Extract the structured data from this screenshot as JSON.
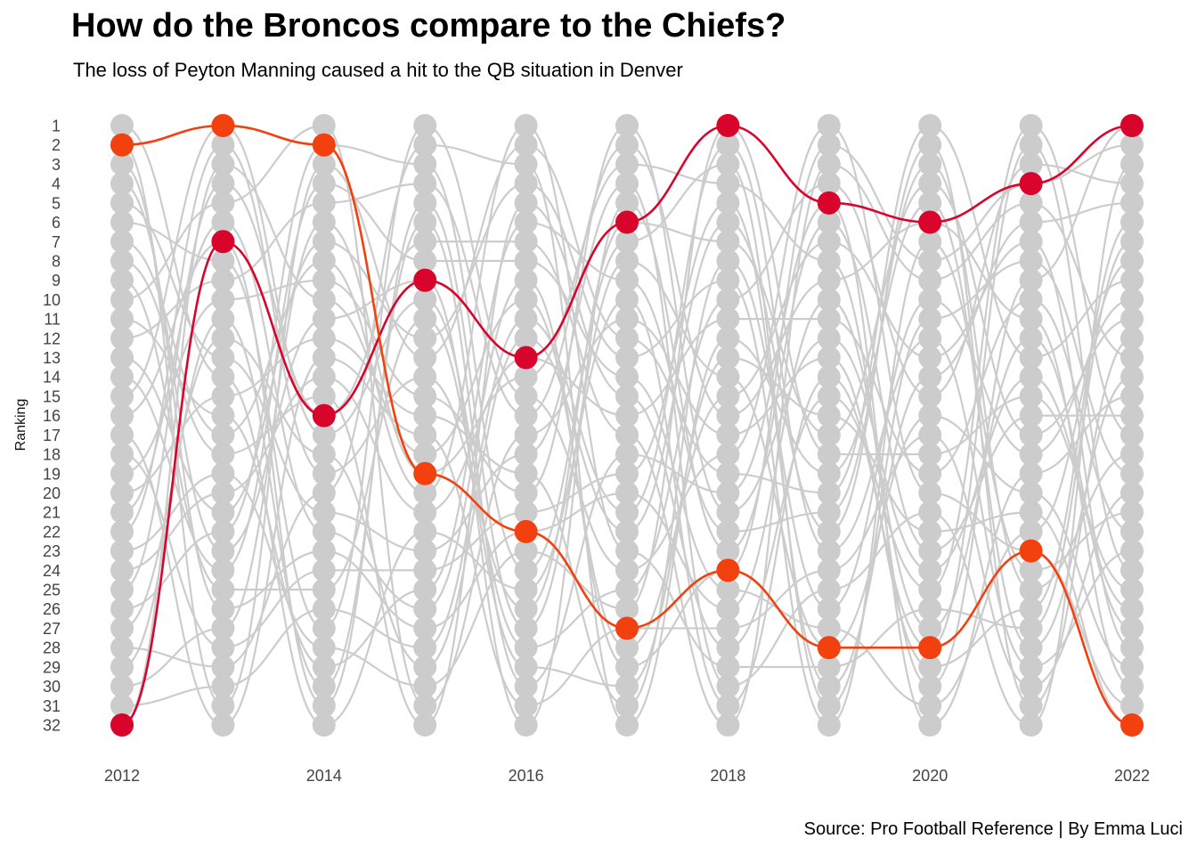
{
  "title": "How do the Broncos compare to the Chiefs?",
  "subtitle": "The loss of Peyton Manning caused a hit to the QB situation in Denver",
  "caption": "Source: Pro Football Reference | By Emma Luci",
  "chart_data": {
    "type": "line",
    "subtype": "bump chart",
    "ylabel": "Ranking",
    "xlabel": "",
    "x": [
      2012,
      2013,
      2014,
      2015,
      2016,
      2017,
      2018,
      2019,
      2020,
      2021,
      2022
    ],
    "x_tick_labels": [
      "2012",
      "2014",
      "2016",
      "2018",
      "2020",
      "2022"
    ],
    "ylim": [
      1,
      32
    ],
    "y_reversed": true,
    "grid": false,
    "legend": "none",
    "background_series": {
      "count": 32,
      "color": "#cccccc",
      "description": "all other teams, ranks 1-32 each season"
    },
    "series": [
      {
        "color": "#d9042b",
        "values": [
          32,
          7,
          16,
          9,
          13,
          6,
          1,
          5,
          6,
          4,
          1
        ]
      },
      {
        "color": "#f3400f",
        "values": [
          2,
          1,
          2,
          19,
          22,
          27,
          24,
          28,
          28,
          23,
          32
        ]
      }
    ]
  }
}
